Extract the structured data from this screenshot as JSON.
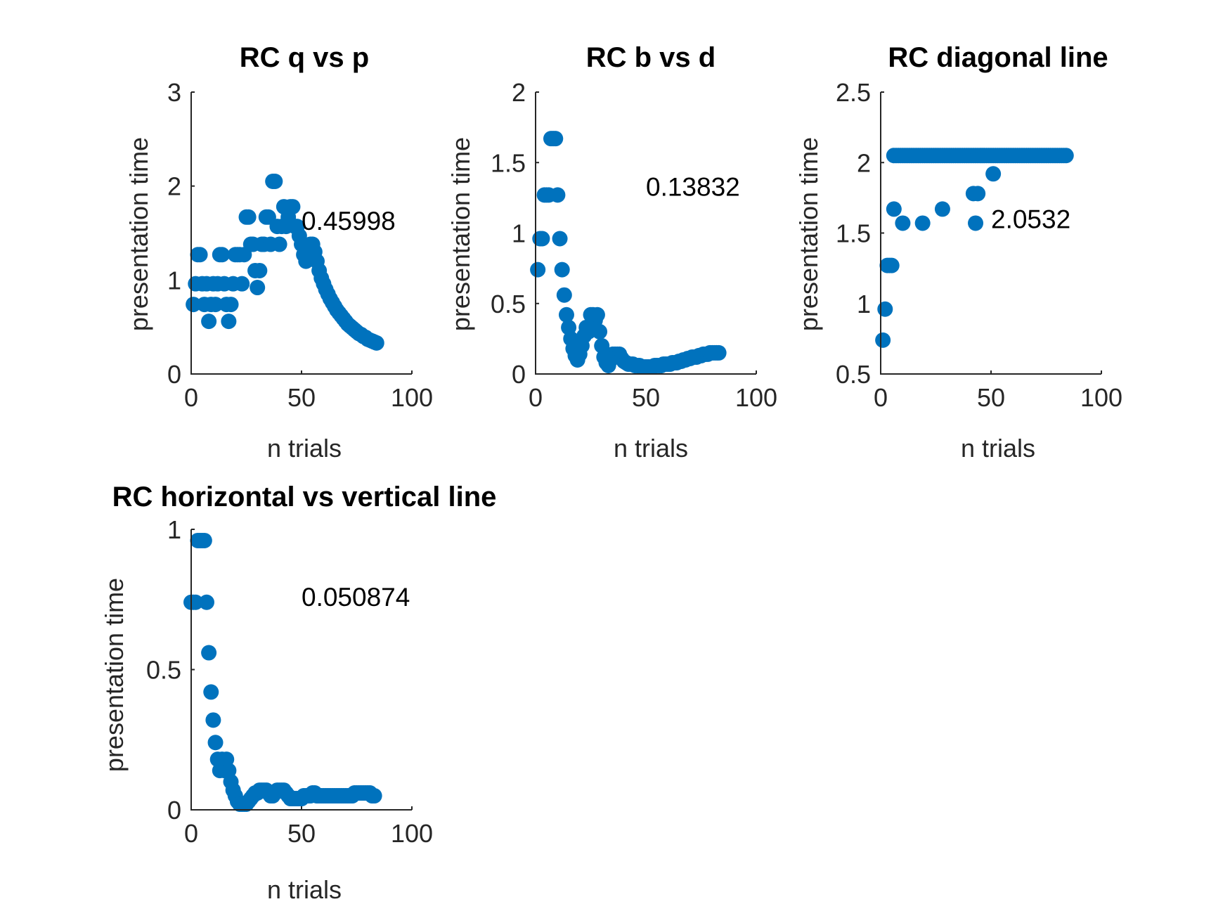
{
  "chart_data": [
    {
      "type": "scatter",
      "title": "RC q vs p",
      "xlabel": "n trials",
      "ylabel": "presentation time",
      "xlim": [
        0,
        100
      ],
      "ylim": [
        0,
        3
      ],
      "xticks": [
        0,
        50,
        100
      ],
      "yticks": [
        0,
        1,
        2,
        3
      ],
      "xtick_labels": [
        "0",
        "50",
        "100"
      ],
      "ytick_labels": [
        "0",
        "1",
        "2",
        "3"
      ],
      "annotation": "0.45998",
      "annotation_at": [
        50,
        1.63
      ],
      "marker_color": "#0072bd",
      "grid": false,
      "x": [
        1,
        2,
        3,
        4,
        5,
        6,
        7,
        8,
        9,
        10,
        11,
        12,
        13,
        14,
        15,
        16,
        17,
        18,
        19,
        20,
        21,
        22,
        23,
        24,
        25,
        26,
        27,
        28,
        29,
        30,
        31,
        32,
        33,
        34,
        35,
        36,
        37,
        38,
        39,
        40,
        41,
        42,
        43,
        44,
        45,
        46,
        47,
        48,
        49,
        50,
        51,
        52,
        53,
        54,
        55,
        56,
        57,
        58,
        59,
        60,
        61,
        62,
        63,
        64,
        65,
        66,
        67,
        68,
        69,
        70,
        71,
        72,
        73,
        74,
        75,
        76,
        77,
        78,
        79,
        80,
        81,
        82,
        83,
        84
      ],
      "y": [
        0.74,
        0.96,
        1.27,
        1.27,
        0.96,
        0.74,
        0.96,
        0.56,
        0.74,
        0.96,
        0.74,
        0.96,
        1.27,
        1.27,
        0.96,
        0.74,
        0.56,
        0.74,
        0.96,
        1.27,
        1.27,
        1.27,
        0.96,
        1.27,
        1.67,
        1.67,
        1.38,
        1.38,
        1.1,
        0.92,
        1.1,
        1.38,
        1.38,
        1.67,
        1.67,
        1.38,
        2.05,
        2.05,
        1.57,
        1.38,
        1.57,
        1.78,
        1.57,
        1.67,
        1.78,
        1.78,
        1.57,
        1.57,
        1.47,
        1.38,
        1.27,
        1.2,
        1.27,
        1.38,
        1.38,
        1.3,
        1.2,
        1.1,
        1.02,
        0.96,
        0.9,
        0.85,
        0.8,
        0.76,
        0.72,
        0.68,
        0.65,
        0.62,
        0.59,
        0.56,
        0.53,
        0.51,
        0.49,
        0.47,
        0.45,
        0.43,
        0.42,
        0.4,
        0.39,
        0.37,
        0.36,
        0.35,
        0.34,
        0.33
      ]
    },
    {
      "type": "scatter",
      "title": "RC b vs d",
      "xlabel": "n trials",
      "ylabel": "presentation time",
      "xlim": [
        0,
        100
      ],
      "ylim": [
        0,
        2
      ],
      "xticks": [
        0,
        50,
        100
      ],
      "yticks": [
        0,
        0.5,
        1,
        1.5,
        2
      ],
      "xtick_labels": [
        "0",
        "50",
        "100"
      ],
      "ytick_labels": [
        "0",
        "0.5",
        "1",
        "1.5",
        "2"
      ],
      "annotation": "0.13832",
      "annotation_at": [
        50,
        1.33
      ],
      "marker_color": "#0072bd",
      "grid": false,
      "x": [
        1,
        2,
        3,
        4,
        5,
        6,
        7,
        8,
        9,
        10,
        11,
        12,
        13,
        14,
        15,
        16,
        17,
        18,
        19,
        20,
        21,
        22,
        23,
        24,
        25,
        26,
        27,
        28,
        29,
        30,
        31,
        32,
        33,
        34,
        35,
        36,
        37,
        38,
        39,
        40,
        41,
        42,
        43,
        44,
        45,
        46,
        47,
        48,
        49,
        50,
        51,
        52,
        53,
        54,
        55,
        56,
        57,
        58,
        59,
        60,
        61,
        62,
        63,
        64,
        65,
        66,
        67,
        68,
        69,
        70,
        71,
        72,
        73,
        74,
        75,
        76,
        77,
        78,
        79,
        80,
        81,
        82,
        83
      ],
      "y": [
        0.74,
        0.96,
        0.96,
        1.27,
        1.27,
        1.27,
        1.67,
        1.67,
        1.67,
        1.27,
        0.96,
        0.74,
        0.56,
        0.42,
        0.33,
        0.25,
        0.18,
        0.13,
        0.1,
        0.14,
        0.2,
        0.27,
        0.33,
        0.3,
        0.42,
        0.42,
        0.38,
        0.42,
        0.3,
        0.2,
        0.12,
        0.08,
        0.06,
        0.1,
        0.14,
        0.14,
        0.14,
        0.14,
        0.11,
        0.09,
        0.08,
        0.07,
        0.07,
        0.07,
        0.06,
        0.06,
        0.06,
        0.05,
        0.05,
        0.05,
        0.05,
        0.05,
        0.05,
        0.06,
        0.06,
        0.06,
        0.06,
        0.07,
        0.07,
        0.07,
        0.07,
        0.08,
        0.08,
        0.08,
        0.09,
        0.09,
        0.1,
        0.1,
        0.11,
        0.11,
        0.12,
        0.12,
        0.12,
        0.13,
        0.13,
        0.14,
        0.14,
        0.14,
        0.15,
        0.15,
        0.15,
        0.15,
        0.15
      ]
    },
    {
      "type": "scatter",
      "title": "RC diagonal line",
      "xlabel": "n trials",
      "ylabel": "presentation time",
      "xlim": [
        0,
        100
      ],
      "ylim": [
        0.5,
        2.5
      ],
      "xticks": [
        0,
        50,
        100
      ],
      "yticks": [
        0.5,
        1,
        1.5,
        2,
        2.5
      ],
      "xtick_labels": [
        "0",
        "50",
        "100"
      ],
      "ytick_labels": [
        "0.5",
        "1",
        "1.5",
        "2",
        "2.5"
      ],
      "annotation": "2.0532",
      "annotation_at": [
        50,
        1.6
      ],
      "marker_color": "#0072bd",
      "grid": false,
      "x": [
        1,
        2,
        3,
        4,
        5,
        6,
        7,
        8,
        9,
        10,
        11,
        12,
        13,
        14,
        15,
        16,
        17,
        18,
        19,
        20,
        21,
        22,
        23,
        24,
        25,
        26,
        27,
        28,
        29,
        30,
        31,
        32,
        33,
        34,
        35,
        36,
        37,
        38,
        39,
        40,
        41,
        42,
        43,
        44,
        45,
        46,
        47,
        48,
        49,
        50,
        51,
        52,
        53,
        54,
        55,
        56,
        57,
        58,
        59,
        60,
        61,
        62,
        63,
        64,
        65,
        66,
        67,
        68,
        69,
        70,
        71,
        72,
        73,
        74,
        75,
        76,
        77,
        78,
        79,
        80,
        81,
        82,
        83,
        84,
        6,
        10,
        19,
        28,
        42,
        43,
        44,
        51
      ],
      "y": [
        0.74,
        0.96,
        1.27,
        1.27,
        1.27,
        2.05,
        2.05,
        2.05,
        2.05,
        2.05,
        2.05,
        2.05,
        2.05,
        2.05,
        2.05,
        2.05,
        2.05,
        2.05,
        2.05,
        2.05,
        2.05,
        2.05,
        2.05,
        2.05,
        2.05,
        2.05,
        2.05,
        2.05,
        2.05,
        2.05,
        2.05,
        2.05,
        2.05,
        2.05,
        2.05,
        2.05,
        2.05,
        2.05,
        2.05,
        2.05,
        2.05,
        2.05,
        2.05,
        2.05,
        2.05,
        2.05,
        2.05,
        2.05,
        2.05,
        2.05,
        2.05,
        2.05,
        2.05,
        2.05,
        2.05,
        2.05,
        2.05,
        2.05,
        2.05,
        2.05,
        2.05,
        2.05,
        2.05,
        2.05,
        2.05,
        2.05,
        2.05,
        2.05,
        2.05,
        2.05,
        2.05,
        2.05,
        2.05,
        2.05,
        2.05,
        2.05,
        2.05,
        2.05,
        2.05,
        2.05,
        2.05,
        2.05,
        2.05,
        2.05,
        1.67,
        1.57,
        1.57,
        1.67,
        1.78,
        1.57,
        1.78,
        1.92
      ]
    },
    {
      "type": "scatter",
      "title": "RC horizontal vs vertical line",
      "xlabel": "n trials",
      "ylabel": "presentation time",
      "xlim": [
        0,
        100
      ],
      "ylim": [
        0,
        1
      ],
      "xticks": [
        0,
        50,
        100
      ],
      "yticks": [
        0,
        0.5,
        1
      ],
      "xtick_labels": [
        "0",
        "50",
        "100"
      ],
      "ytick_labels": [
        "0",
        "0.5",
        "1"
      ],
      "annotation": "0.050874",
      "annotation_at": [
        50,
        0.76
      ],
      "marker_color": "#0072bd",
      "grid": false,
      "x": [
        0,
        1,
        2,
        3,
        4,
        5,
        6,
        7,
        8,
        9,
        10,
        11,
        12,
        13,
        14,
        15,
        16,
        17,
        18,
        19,
        20,
        21,
        22,
        23,
        24,
        25,
        26,
        27,
        28,
        29,
        30,
        31,
        32,
        33,
        34,
        35,
        36,
        37,
        38,
        39,
        40,
        41,
        42,
        43,
        44,
        45,
        46,
        47,
        48,
        49,
        50,
        51,
        52,
        53,
        54,
        55,
        56,
        57,
        58,
        59,
        60,
        61,
        62,
        63,
        64,
        65,
        66,
        67,
        68,
        69,
        70,
        71,
        72,
        73,
        74,
        75,
        76,
        77,
        78,
        79,
        80,
        81,
        82,
        83
      ],
      "y": [
        0.74,
        0.74,
        0.74,
        0.96,
        0.96,
        0.96,
        0.96,
        0.74,
        0.56,
        0.42,
        0.32,
        0.24,
        0.18,
        0.14,
        0.18,
        0.14,
        0.18,
        0.14,
        0.1,
        0.07,
        0.05,
        0.03,
        0.02,
        0.02,
        0.02,
        0.02,
        0.03,
        0.04,
        0.05,
        0.06,
        0.06,
        0.07,
        0.07,
        0.07,
        0.07,
        0.06,
        0.05,
        0.05,
        0.06,
        0.07,
        0.07,
        0.07,
        0.07,
        0.06,
        0.05,
        0.04,
        0.04,
        0.04,
        0.04,
        0.04,
        0.04,
        0.05,
        0.05,
        0.05,
        0.05,
        0.06,
        0.06,
        0.05,
        0.05,
        0.05,
        0.05,
        0.05,
        0.05,
        0.05,
        0.05,
        0.05,
        0.05,
        0.05,
        0.05,
        0.05,
        0.05,
        0.05,
        0.05,
        0.05,
        0.06,
        0.06,
        0.06,
        0.06,
        0.06,
        0.06,
        0.06,
        0.06,
        0.05,
        0.05
      ]
    }
  ]
}
